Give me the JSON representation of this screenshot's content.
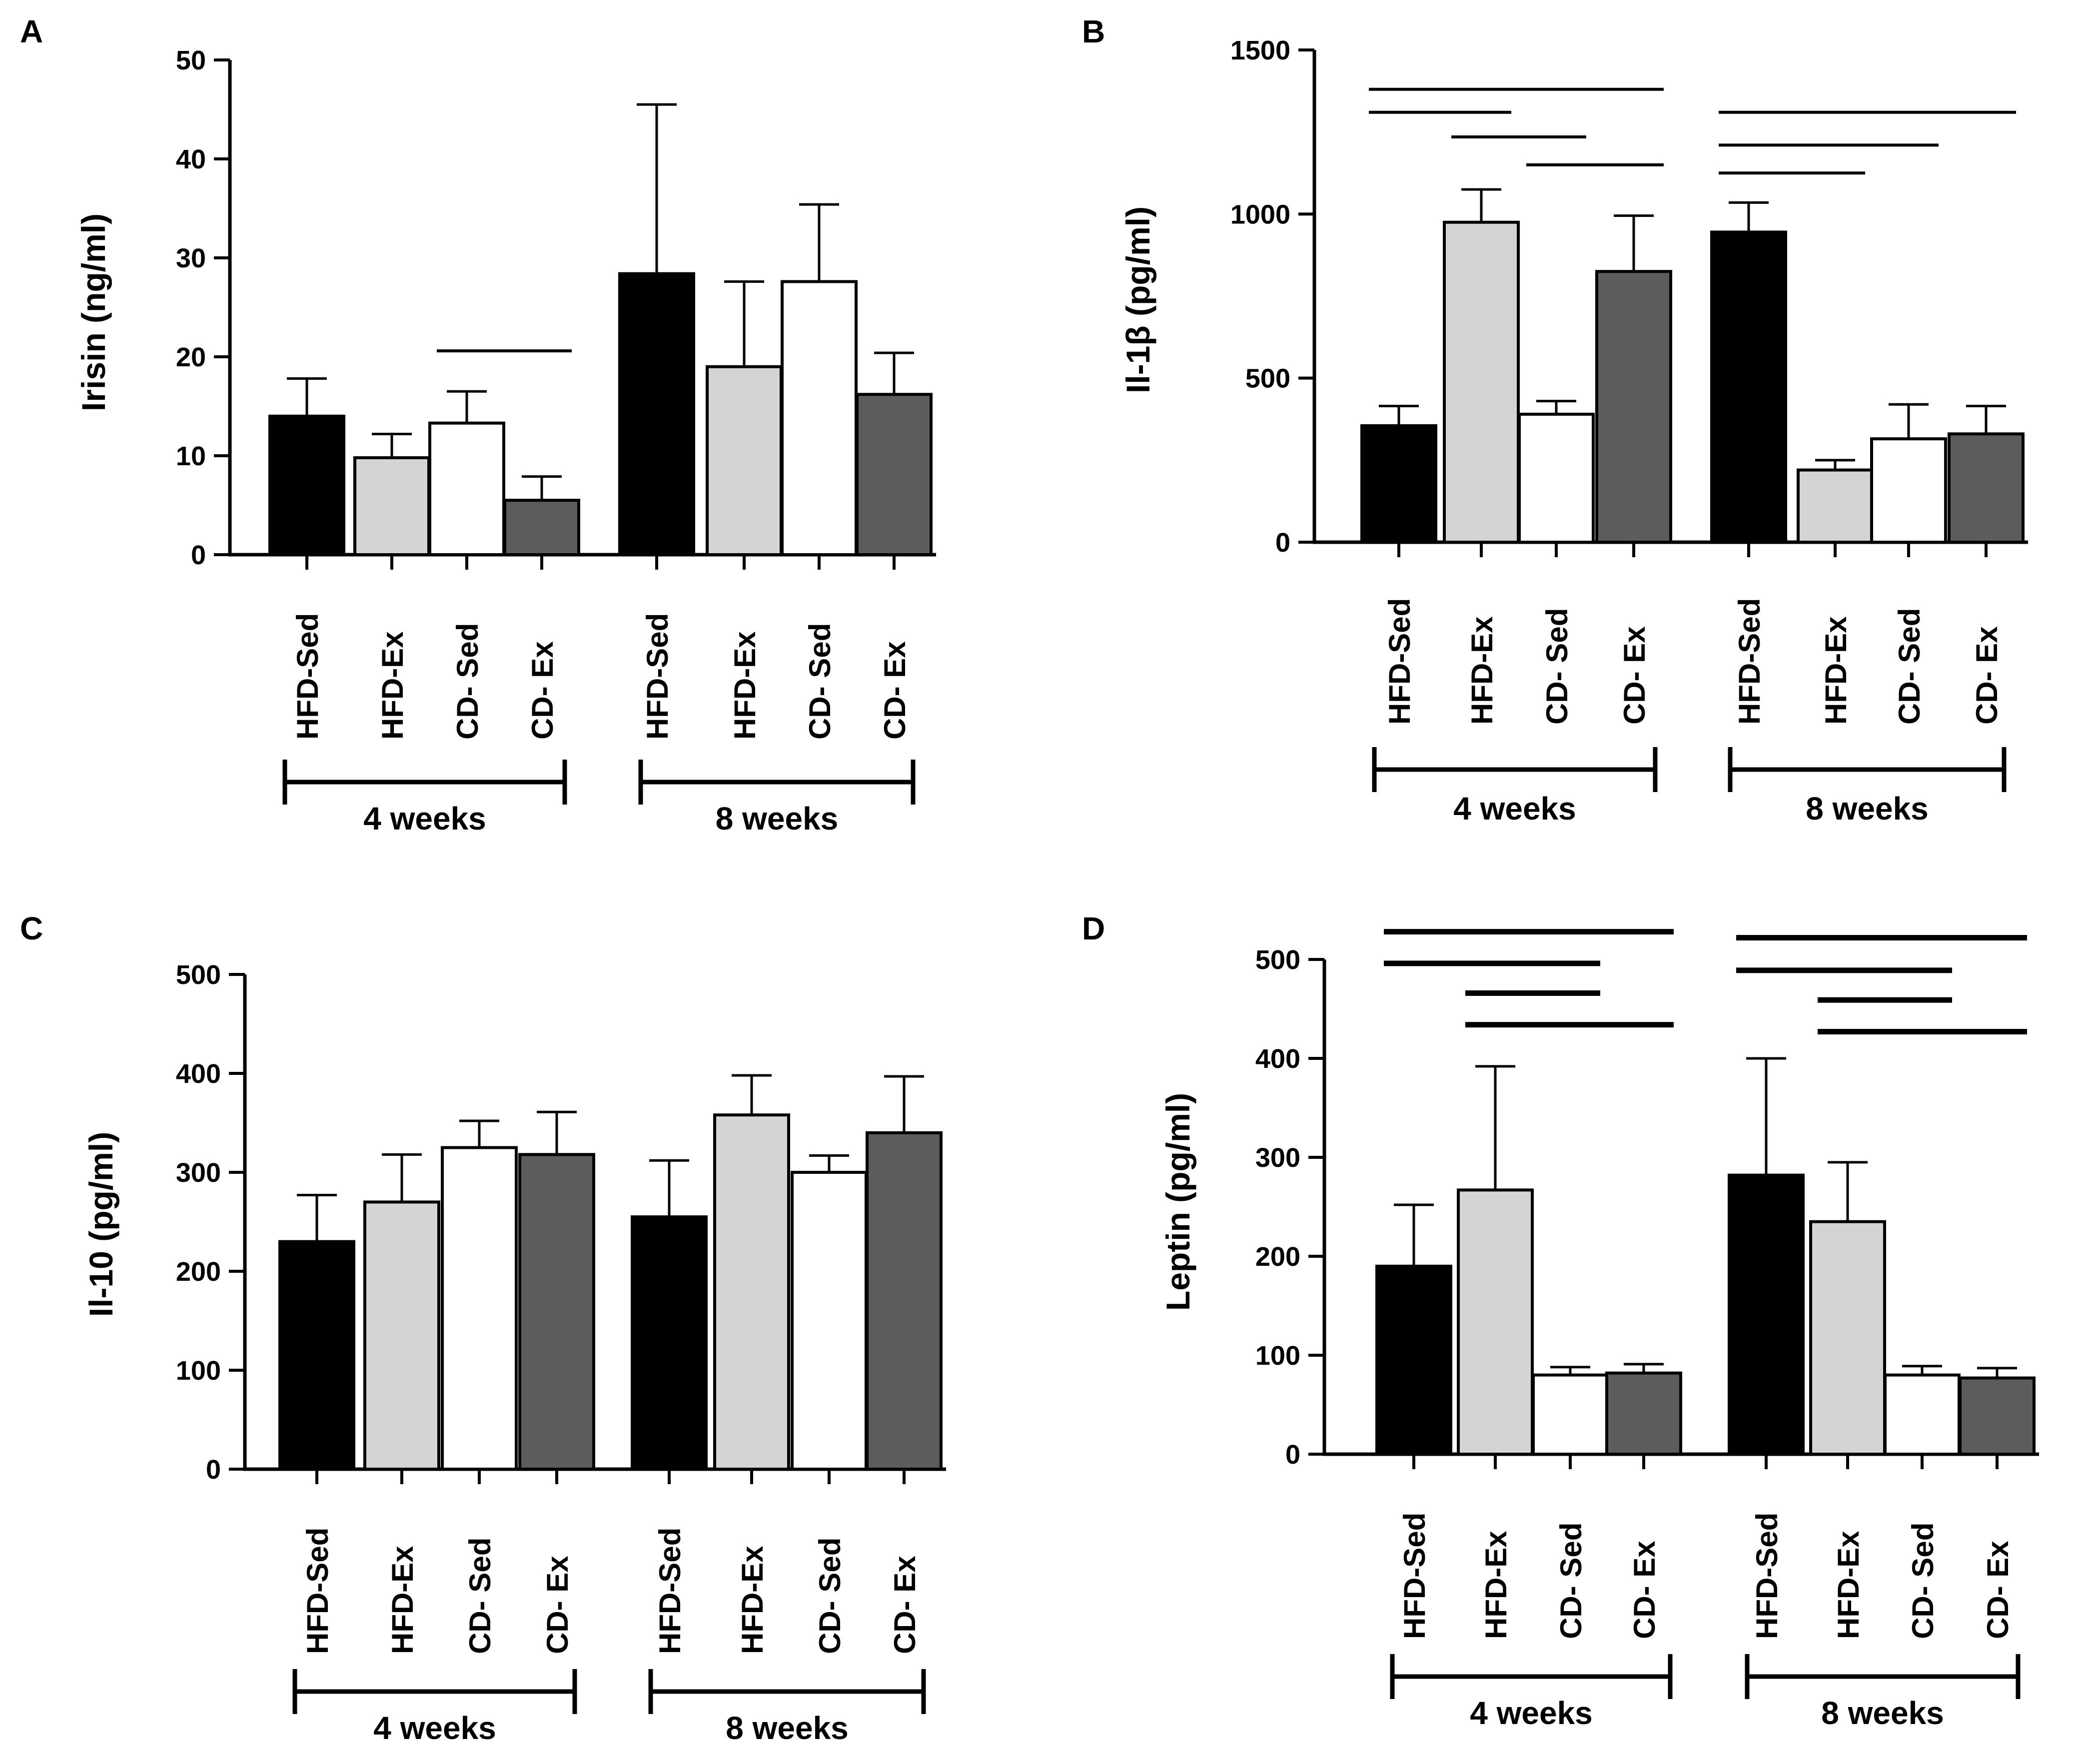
{
  "figure": {
    "group_labels": [
      "4 weeks",
      "8 weeks"
    ],
    "categories": [
      "HFD-Sed",
      "HFD-Ex",
      "CD- Sed",
      "CD- Ex"
    ],
    "bar_colors": [
      "#000000",
      "#d4d4d4",
      "#ffffff",
      "#5c5c5c"
    ]
  },
  "chart_data": [
    {
      "panel": "A",
      "type": "bar",
      "ylabel": "Irisin (ng/ml)",
      "ylim": [
        0,
        50
      ],
      "yticks": [
        "0",
        "10",
        "20",
        "30",
        "40",
        "50"
      ],
      "categories": [
        "HFD-Sed",
        "HFD-Ex",
        "CD- Sed",
        "CD- Ex",
        "HFD-Sed",
        "HFD-Ex",
        "CD- Sed",
        "CD- Ex"
      ],
      "groups": [
        "4 weeks",
        "8 weeks"
      ],
      "values": [
        14,
        9.8,
        13.3,
        5.5,
        28.4,
        19,
        27.6,
        16.2
      ],
      "errors": [
        3.8,
        2.4,
        3.2,
        2.4,
        17.1,
        8.6,
        7.8,
        4.2
      ],
      "significance": [
        {
          "from": 2,
          "to": 3,
          "y": 20.6
        }
      ]
    },
    {
      "panel": "B",
      "type": "bar",
      "ylabel": "Il-1β (pg/ml)",
      "ylim": [
        0,
        1500
      ],
      "yticks": [
        "0",
        "500",
        "1000",
        "1500"
      ],
      "categories": [
        "HFD-Sed",
        "HFD-Ex",
        "CD- Sed",
        "CD- Ex",
        "HFD-Sed",
        "HFD-Ex",
        "CD- Sed",
        "CD- Ex"
      ],
      "groups": [
        "4 weeks",
        "8 weeks"
      ],
      "values": [
        355,
        975,
        390,
        825,
        945,
        220,
        315,
        330
      ],
      "errors": [
        60,
        100,
        40,
        170,
        90,
        30,
        105,
        85
      ],
      "significance": [
        {
          "from": 0,
          "to": 3,
          "y": 1380
        },
        {
          "from": 0,
          "to": 1,
          "y": 1310
        },
        {
          "from": 1,
          "to": 2,
          "y": 1235
        },
        {
          "from": 2,
          "to": 3,
          "y": 1150
        },
        {
          "from": 4,
          "to": 7,
          "y": 1310
        },
        {
          "from": 4,
          "to": 6,
          "y": 1210
        },
        {
          "from": 4,
          "to": 5,
          "y": 1125
        }
      ]
    },
    {
      "panel": "C",
      "type": "bar",
      "ylabel": "Il-10 (pg/ml)",
      "ylim": [
        0,
        500
      ],
      "yticks": [
        "0",
        "100",
        "200",
        "300",
        "400",
        "500"
      ],
      "categories": [
        "HFD-Sed",
        "HFD-Ex",
        "CD- Sed",
        "CD- Ex",
        "HFD-Sed",
        "HFD-Ex",
        "CD- Sed",
        "CD- Ex"
      ],
      "groups": [
        "4 weeks",
        "8 weeks"
      ],
      "values": [
        230,
        270,
        325,
        318,
        255,
        358,
        300,
        340
      ],
      "errors": [
        47,
        48,
        27,
        43,
        57,
        40,
        17,
        57
      ],
      "significance": []
    },
    {
      "panel": "D",
      "type": "bar",
      "ylabel": "Leptin (pg/ml)",
      "ylim": [
        0,
        500
      ],
      "yticks": [
        "0",
        "100",
        "200",
        "300",
        "400",
        "500"
      ],
      "categories": [
        "HFD-Sed",
        "HFD-Ex",
        "CD- Sed",
        "CD- Ex",
        "HFD-Sed",
        "HFD-Ex",
        "CD- Sed",
        "CD- Ex"
      ],
      "groups": [
        "4 weeks",
        "8 weeks"
      ],
      "values": [
        190,
        267,
        80,
        82,
        282,
        235,
        80,
        77
      ],
      "errors": [
        62,
        125,
        8,
        9,
        118,
        60,
        9,
        10
      ],
      "significance": [
        {
          "from": 0,
          "to": 3,
          "y": 528
        },
        {
          "from": 0,
          "to": 2,
          "y": 496
        },
        {
          "from": 1,
          "to": 2,
          "y": 466
        },
        {
          "from": 1,
          "to": 3,
          "y": 434
        },
        {
          "from": 4,
          "to": 7,
          "y": 522
        },
        {
          "from": 4,
          "to": 6,
          "y": 489
        },
        {
          "from": 5,
          "to": 6,
          "y": 459
        },
        {
          "from": 5,
          "to": 7,
          "y": 427
        }
      ]
    }
  ]
}
